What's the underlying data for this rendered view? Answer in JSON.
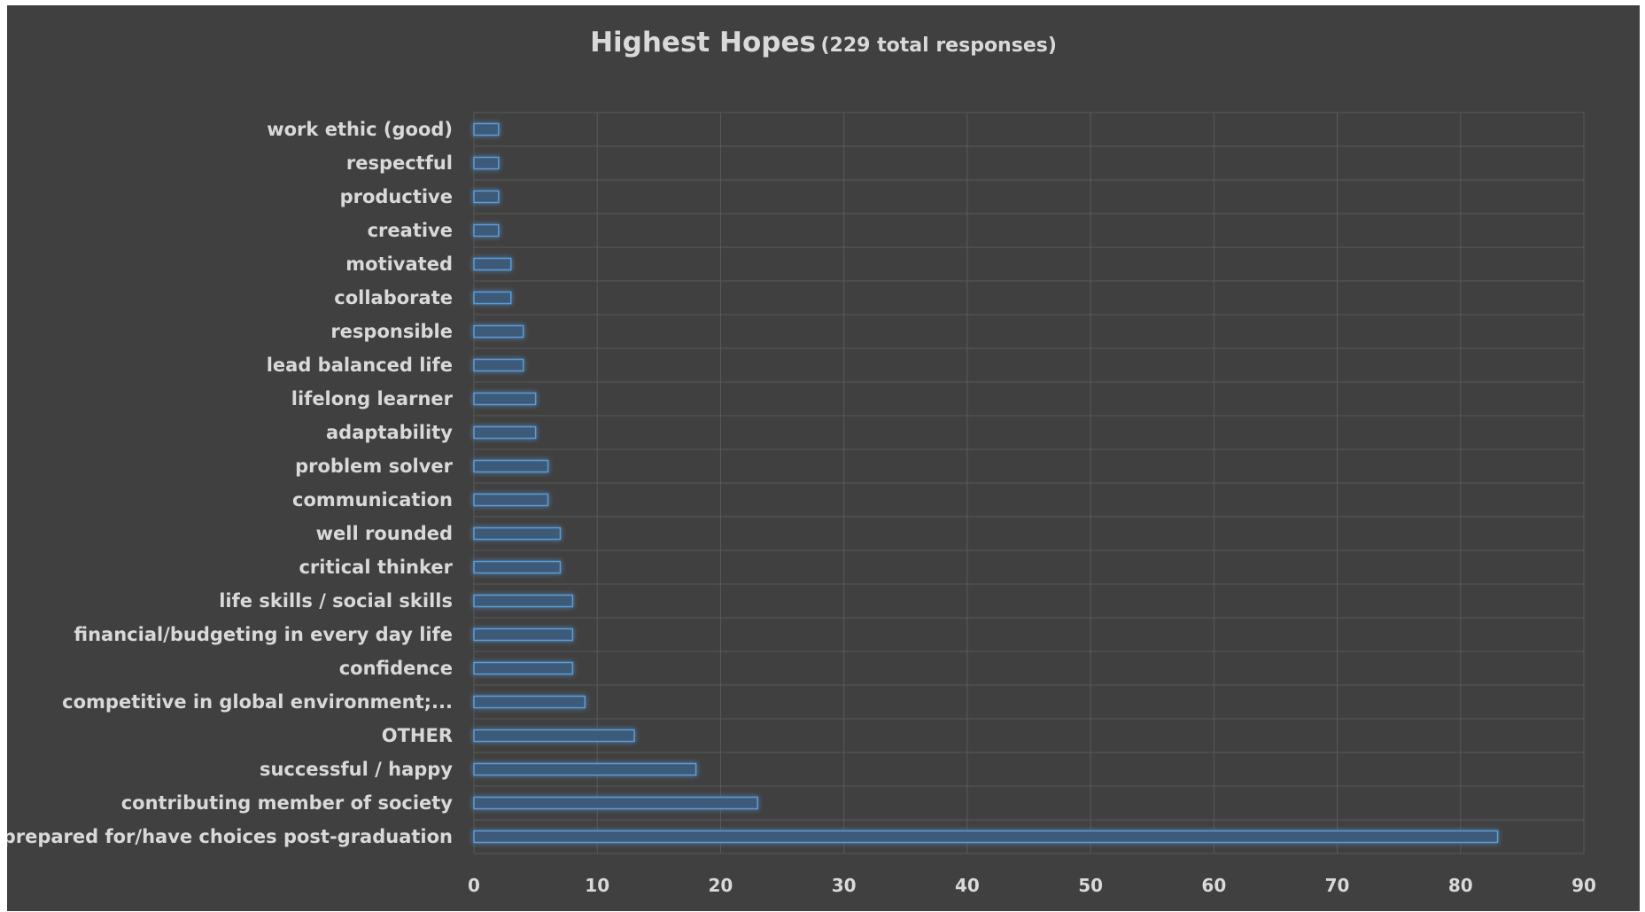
{
  "chart_data": {
    "type": "bar",
    "orientation": "horizontal",
    "title": "Highest Hopes",
    "subtitle": "(229 total responses)",
    "xlim": [
      0,
      90
    ],
    "x_ticks": [
      0,
      10,
      20,
      30,
      40,
      50,
      60,
      70,
      80,
      90
    ],
    "grid": true,
    "legend": "none",
    "categories": [
      "work ethic (good)",
      "respectful",
      "productive",
      "creative",
      "motivated",
      "collaborate",
      "responsible",
      "lead balanced life",
      "lifelong learner",
      "adaptability",
      "problem solver",
      "communication",
      "well rounded",
      "critical thinker",
      "life skills / social skills",
      "financial/budgeting in every day life",
      "confidence",
      "competitive in global environment;...",
      "OTHER",
      "successful / happy",
      "contributing member of society",
      "prepared for/have choices post-graduation"
    ],
    "values": [
      2,
      2,
      2,
      2,
      3,
      3,
      4,
      4,
      5,
      5,
      6,
      6,
      7,
      7,
      8,
      8,
      8,
      9,
      13,
      18,
      23,
      83
    ],
    "colors": {
      "background": "#404040",
      "bar_fill": "#3e5a78",
      "bar_stroke": "#5b9bd5",
      "text": "#d9d9d9",
      "grid": "#595959"
    }
  }
}
